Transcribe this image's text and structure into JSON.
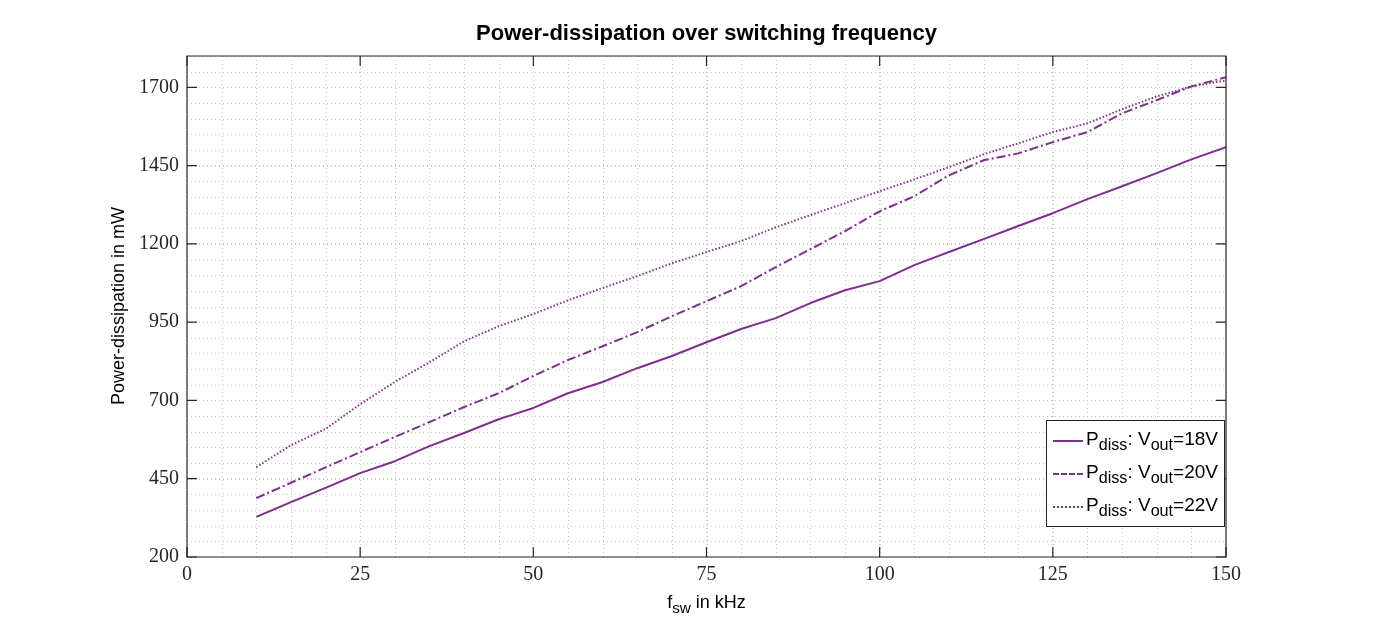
{
  "chart_data": {
    "type": "line",
    "title": "Power-dissipation over switching frequency",
    "xlabel": "f$_{sw}$ in kHz",
    "ylabel": "Power-dissipation in mW",
    "x": [
      10,
      15,
      20,
      25,
      30,
      35,
      40,
      45,
      50,
      55,
      60,
      65,
      70,
      75,
      80,
      85,
      90,
      95,
      100,
      105,
      110,
      115,
      120,
      125,
      130,
      135,
      140,
      145,
      150
    ],
    "xlim": [
      0,
      150
    ],
    "xticks": [
      0,
      25,
      50,
      75,
      100,
      125,
      150
    ],
    "ylim": [
      200,
      1800
    ],
    "yticks": [
      200,
      450,
      700,
      950,
      1200,
      1450,
      1700
    ],
    "grid": true,
    "legend": "bottom right",
    "marker": "none",
    "series": [
      {
        "name": "P$_{diss}$: V$_{out}$=18V",
        "color": "#7e2f8e",
        "line_style": "solid",
        "values": [
          328,
          375,
          421,
          468,
          506,
          554,
          596,
          640,
          676,
          723,
          759,
          803,
          842,
          886,
          928,
          963,
          1011,
          1052,
          1081,
          1132,
          1174,
          1215,
          1257,
          1298,
          1343,
          1384,
          1426,
          1470,
          1509
        ]
      },
      {
        "name": "P$_{diss}$: V$_{out}$=20V",
        "color": "#7e2f8e",
        "line_style": "dashed",
        "values": [
          388,
          437,
          486,
          535,
          583,
          631,
          679,
          723,
          778,
          829,
          873,
          918,
          969,
          1017,
          1065,
          1126,
          1183,
          1241,
          1304,
          1352,
          1419,
          1467,
          1489,
          1525,
          1557,
          1617,
          1659,
          1703,
          1732
        ]
      },
      {
        "name": "P$_{diss}$: V$_{out}$=22V",
        "color": "#7e2f8e",
        "line_style": "dotted",
        "values": [
          487,
          557,
          609,
          688,
          759,
          822,
          889,
          937,
          976,
          1020,
          1059,
          1097,
          1138,
          1174,
          1209,
          1253,
          1292,
          1330,
          1368,
          1406,
          1445,
          1486,
          1521,
          1557,
          1585,
          1630,
          1671,
          1703,
          1722
        ]
      }
    ]
  }
}
